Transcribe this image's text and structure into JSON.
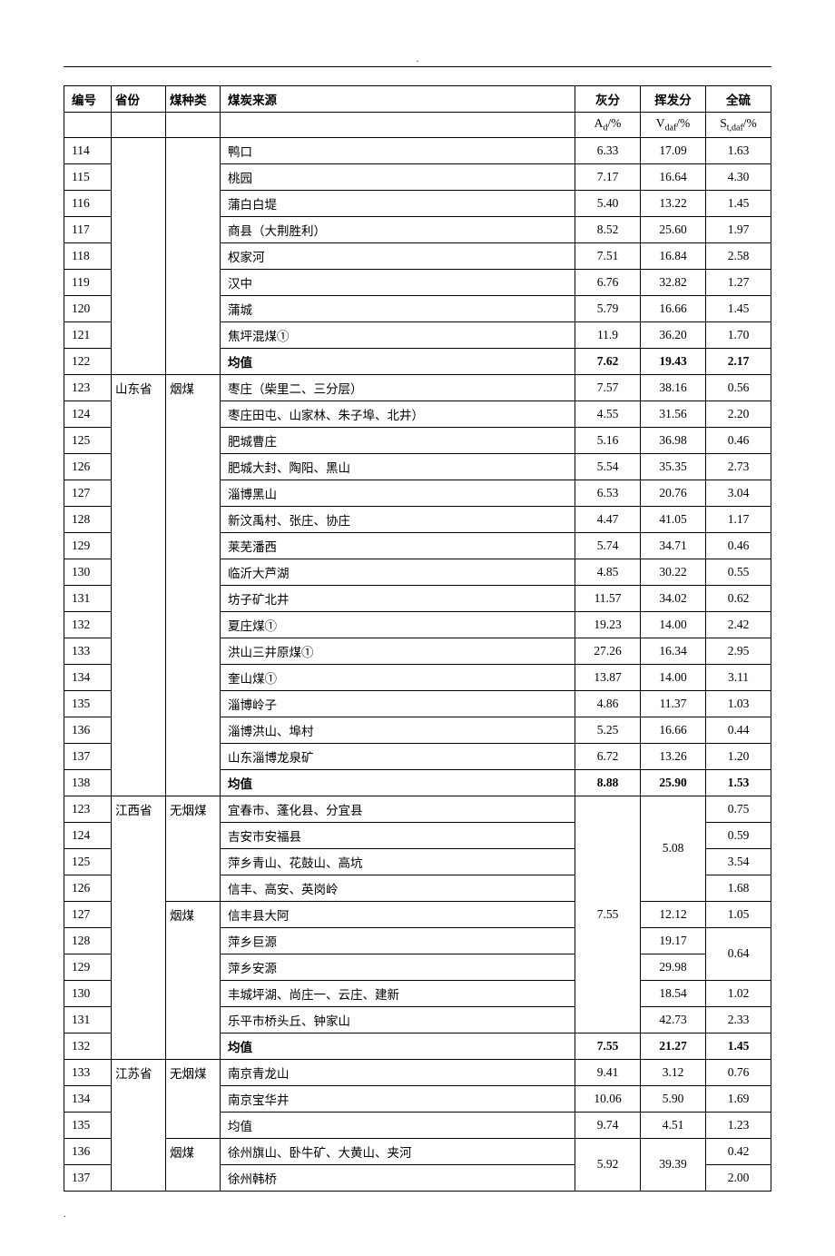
{
  "header": {
    "id": "编号",
    "province": "省份",
    "coal_type": "煤种类",
    "source": "煤炭来源",
    "ash": "灰分",
    "volatile": "挥发分",
    "sulfur": "全硫"
  },
  "units": {
    "ash": "A_d/%",
    "volatile": "V_daf/%",
    "sulfur": "S_t,daf/%"
  },
  "ash_unit_parts": {
    "pre": "A",
    "sub": "d",
    "post": "/%"
  },
  "vol_unit_parts": {
    "pre": "V",
    "sub": "daf",
    "post": "/%"
  },
  "sul_unit_parts": {
    "pre": "S",
    "sub": "t,daf",
    "post": "/%"
  },
  "page_dot": ".",
  "footer_dot": ".",
  "rows": [
    {
      "id": "114",
      "source": "鸭口",
      "ash": "6.33",
      "vol": "17.09",
      "sul": "1.63"
    },
    {
      "id": "115",
      "source": "桃园",
      "ash": "7.17",
      "vol": "16.64",
      "sul": "4.30"
    },
    {
      "id": "116",
      "source": "蒲白白堤",
      "ash": "5.40",
      "vol": "13.22",
      "sul": "1.45"
    },
    {
      "id": "117",
      "source": "商县（大荆胜利）",
      "ash": "8.52",
      "vol": "25.60",
      "sul": "1.97"
    },
    {
      "id": "118",
      "source": "权家河",
      "ash": "7.51",
      "vol": "16.84",
      "sul": "2.58"
    },
    {
      "id": "119",
      "source": "汉中",
      "ash": "6.76",
      "vol": "32.82",
      "sul": "1.27"
    },
    {
      "id": "120",
      "source": "蒲城",
      "ash": "5.79",
      "vol": "16.66",
      "sul": "1.45"
    },
    {
      "id": "121",
      "source": "焦坪混煤①",
      "ash": "11.9",
      "vol": "36.20",
      "sul": "1.70"
    },
    {
      "id": "122",
      "source": "均值",
      "ash": "7.62",
      "vol": "19.43",
      "sul": "2.17",
      "bold": true
    }
  ],
  "shandong": {
    "province": "山东省",
    "coal_type": "烟煤",
    "rows": [
      {
        "id": "123",
        "source": "枣庄（柴里二、三分层）",
        "ash": "7.57",
        "vol": "38.16",
        "sul": "0.56"
      },
      {
        "id": "124",
        "source": "枣庄田屯、山家林、朱子埠、北井）",
        "ash": "4.55",
        "vol": "31.56",
        "sul": "2.20"
      },
      {
        "id": "125",
        "source": "肥城曹庄",
        "ash": "5.16",
        "vol": "36.98",
        "sul": "0.46"
      },
      {
        "id": "126",
        "source": "肥城大封、陶阳、黑山",
        "ash": "5.54",
        "vol": "35.35",
        "sul": "2.73"
      },
      {
        "id": "127",
        "source": "淄博黑山",
        "ash": "6.53",
        "vol": "20.76",
        "sul": "3.04"
      },
      {
        "id": "128",
        "source": "新汶禹村、张庄、协庄",
        "ash": "4.47",
        "vol": "41.05",
        "sul": "1.17"
      },
      {
        "id": "129",
        "source": "莱芜潘西",
        "ash": "5.74",
        "vol": "34.71",
        "sul": "0.46"
      },
      {
        "id": "130",
        "source": "临沂大芦湖",
        "ash": "4.85",
        "vol": "30.22",
        "sul": "0.55"
      },
      {
        "id": "131",
        "source": "坊子矿北井",
        "ash": "11.57",
        "vol": "34.02",
        "sul": "0.62"
      },
      {
        "id": "132",
        "source": "夏庄煤①",
        "ash": "19.23",
        "vol": "14.00",
        "sul": "2.42"
      },
      {
        "id": "133",
        "source": "洪山三井原煤①",
        "ash": "27.26",
        "vol": "16.34",
        "sul": "2.95"
      },
      {
        "id": "134",
        "source": "奎山煤①",
        "ash": "13.87",
        "vol": "14.00",
        "sul": "3.11"
      },
      {
        "id": "135",
        "source": "淄博岭子",
        "ash": "4.86",
        "vol": "11.37",
        "sul": "1.03"
      },
      {
        "id": "136",
        "source": "淄博洪山、埠村",
        "ash": "5.25",
        "vol": "16.66",
        "sul": "0.44"
      },
      {
        "id": "137",
        "source": "山东淄博龙泉矿",
        "ash": "6.72",
        "vol": "13.26",
        "sul": "1.20"
      },
      {
        "id": "138",
        "source": "均值",
        "ash": "8.88",
        "vol": "25.90",
        "sul": "1.53",
        "bold": true
      }
    ]
  },
  "jiangxi": {
    "province": "江西省",
    "coal_type_wuyan": "无烟煤",
    "coal_type_yan": "烟煤",
    "ash_merged": "7.55",
    "vol_wuyan": "5.08",
    "rows_wuyan": [
      {
        "id": "123",
        "source": "宜春市、蓬化县、分宜县",
        "sul": "0.75"
      },
      {
        "id": "124",
        "source": "吉安市安福县",
        "sul": "0.59"
      },
      {
        "id": "125",
        "source": "萍乡青山、花鼓山、高坑",
        "sul": "3.54"
      },
      {
        "id": "126",
        "source": "信丰、高安、英岗岭",
        "sul": "1.68"
      }
    ],
    "rows_yan": [
      {
        "id": "127",
        "source": "信丰县大阿",
        "vol": "12.12",
        "sul": "1.05"
      },
      {
        "id": "128",
        "source": "萍乡巨源",
        "vol": "19.17"
      },
      {
        "id": "129",
        "source": "萍乡安源",
        "vol": "29.98",
        "sul_merged": "0.64"
      },
      {
        "id": "130",
        "source": "丰城坪湖、尚庄一、云庄、建新",
        "vol": "18.54",
        "sul": "1.02"
      },
      {
        "id": "131",
        "source": "乐平市桥头丘、钟家山",
        "vol": "42.73",
        "sul": "2.33"
      }
    ],
    "mean": {
      "id": "132",
      "source": "均值",
      "ash": "7.55",
      "vol": "21.27",
      "sul": "1.45"
    }
  },
  "jiangsu": {
    "province": "江苏省",
    "coal_type_wuyan": "无烟煤",
    "coal_type_yan": "烟煤",
    "rows_wuyan": [
      {
        "id": "133",
        "source": "南京青龙山",
        "ash": "9.41",
        "vol": "3.12",
        "sul": "0.76"
      },
      {
        "id": "134",
        "source": "南京宝华井",
        "ash": "10.06",
        "vol": "5.90",
        "sul": "1.69"
      },
      {
        "id": "135",
        "source": "均值",
        "ash": "9.74",
        "vol": "4.51",
        "sul": "1.23"
      }
    ],
    "rows_yan": [
      {
        "id": "136",
        "source": "徐州旗山、卧牛矿、大黄山、夹河",
        "sul": "0.42"
      },
      {
        "id": "137",
        "source": "徐州韩桥",
        "ash_merged": "5.92",
        "vol_merged": "39.39",
        "sul": "2.00"
      }
    ]
  }
}
